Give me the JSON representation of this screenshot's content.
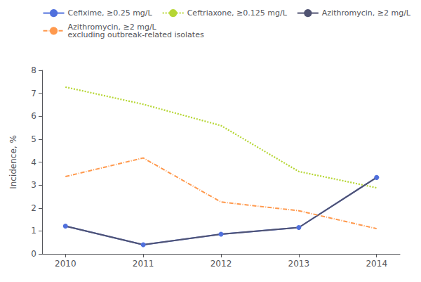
{
  "chart_data": {
    "type": "line",
    "x": [
      2010,
      2011,
      2012,
      2013,
      2014
    ],
    "series": [
      {
        "name": "Cefixime, ≥0.25 mg/L",
        "values": [
          1.21,
          0.4,
          0.86,
          1.15,
          3.33
        ],
        "line_style": "solid",
        "marker": "circle"
      },
      {
        "name": "Ceftriaxone, ≥0.125 mg/L",
        "values": [
          7.27,
          6.52,
          5.59,
          3.59,
          2.88
        ],
        "line_style": "dotted",
        "marker": "none"
      },
      {
        "name": "Azithromycin, ≥2 mg/L",
        "values": [
          1.21,
          0.4,
          0.86,
          1.15,
          3.33
        ],
        "line_style": "solid",
        "marker": "none"
      },
      {
        "name": "Azithromycin, ≥2 mg/L\nexcluding outbreak-related isolates",
        "values": [
          3.37,
          4.18,
          2.26,
          1.88,
          1.1
        ],
        "line_style": "dashdot",
        "marker": "none"
      }
    ],
    "ylabel": "Incidence, %",
    "xlim": [
      2009.7,
      2014.3
    ],
    "xticks": [
      2010,
      2011,
      2012,
      2013,
      2014
    ],
    "ylim": [
      0,
      8
    ],
    "yticks": [
      0,
      1,
      2,
      3,
      4,
      5,
      6,
      7,
      8
    ],
    "grid": false,
    "legend": "upper right"
  }
}
